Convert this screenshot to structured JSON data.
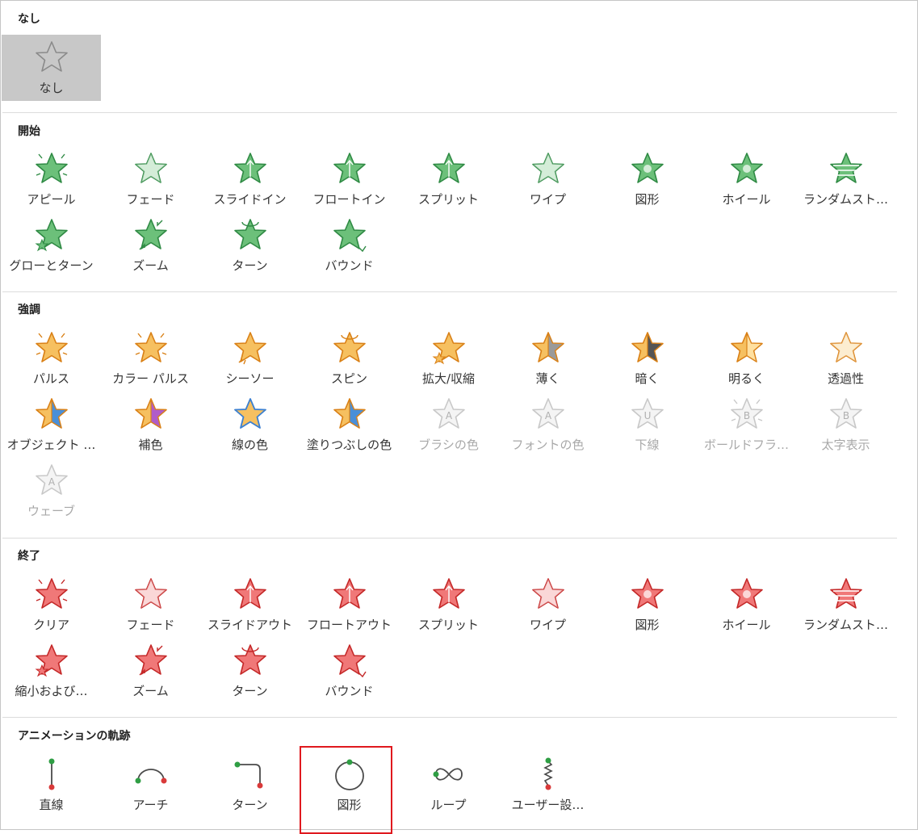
{
  "colors": {
    "none": "#8a8a8a",
    "entrance_fill": "#6cc07a",
    "entrance_stroke": "#2f8a44",
    "emphasis_fill": "#f6c060",
    "emphasis_stroke": "#d98016",
    "exit_fill": "#f07878",
    "exit_stroke": "#c42828",
    "disabled": "#c8c8c8",
    "selection": "#c8c8c8",
    "highlight_border": "#e0191e",
    "path_start": "#2f9e44",
    "path_end": "#d93a3a"
  },
  "sections": [
    {
      "id": "none",
      "title": "なし",
      "items": [
        {
          "label": "なし",
          "icon": "star-outline-icon",
          "variant": "none",
          "selected": true
        }
      ]
    },
    {
      "id": "entrance",
      "title": "開始",
      "items": [
        {
          "label": "アピール",
          "icon": "appear-star-icon",
          "variant": "entrance"
        },
        {
          "label": "フェード",
          "icon": "fade-star-icon",
          "variant": "entrance"
        },
        {
          "label": "スライドイン",
          "icon": "fly-in-star-icon",
          "variant": "entrance"
        },
        {
          "label": "フロートイン",
          "icon": "float-in-star-icon",
          "variant": "entrance"
        },
        {
          "label": "スプリット",
          "icon": "split-star-icon",
          "variant": "entrance"
        },
        {
          "label": "ワイプ",
          "icon": "wipe-star-icon",
          "variant": "entrance"
        },
        {
          "label": "図形",
          "icon": "shape-star-icon",
          "variant": "entrance"
        },
        {
          "label": "ホイール",
          "icon": "wheel-star-icon",
          "variant": "entrance"
        },
        {
          "label": "ランダムスト…",
          "icon": "random-bars-star-icon",
          "variant": "entrance"
        },
        {
          "label": "グローとターン",
          "icon": "grow-turn-star-icon",
          "variant": "entrance"
        },
        {
          "label": "ズーム",
          "icon": "zoom-star-icon",
          "variant": "entrance"
        },
        {
          "label": "ターン",
          "icon": "swivel-star-icon",
          "variant": "entrance"
        },
        {
          "label": "バウンド",
          "icon": "bounce-star-icon",
          "variant": "entrance"
        }
      ]
    },
    {
      "id": "emphasis",
      "title": "強調",
      "items": [
        {
          "label": "パルス",
          "icon": "pulse-star-icon",
          "variant": "emphasis"
        },
        {
          "label": "カラー パルス",
          "icon": "color-pulse-star-icon",
          "variant": "emphasis"
        },
        {
          "label": "シーソー",
          "icon": "teeter-star-icon",
          "variant": "emphasis"
        },
        {
          "label": "スピン",
          "icon": "spin-star-icon",
          "variant": "emphasis"
        },
        {
          "label": "拡大/収縮",
          "icon": "grow-shrink-star-icon",
          "variant": "emphasis"
        },
        {
          "label": "薄く",
          "icon": "desaturate-star-icon",
          "variant": "emphasis"
        },
        {
          "label": "暗く",
          "icon": "darken-star-icon",
          "variant": "emphasis"
        },
        {
          "label": "明るく",
          "icon": "lighten-star-icon",
          "variant": "emphasis"
        },
        {
          "label": "透過性",
          "icon": "transparency-star-icon",
          "variant": "emphasis"
        },
        {
          "label": "オブジェクト …",
          "icon": "object-color-star-icon",
          "variant": "emphasis"
        },
        {
          "label": "補色",
          "icon": "complementary-color-star-icon",
          "variant": "emphasis"
        },
        {
          "label": "線の色",
          "icon": "line-color-star-icon",
          "variant": "emphasis"
        },
        {
          "label": "塗りつぶしの色",
          "icon": "fill-color-star-icon",
          "variant": "emphasis"
        },
        {
          "label": "ブラシの色",
          "icon": "brush-color-star-icon",
          "variant": "disabled",
          "glyph": "A"
        },
        {
          "label": "フォントの色",
          "icon": "font-color-star-icon",
          "variant": "disabled",
          "glyph": "A"
        },
        {
          "label": "下線",
          "icon": "underline-star-icon",
          "variant": "disabled",
          "glyph": "U"
        },
        {
          "label": "ボールドフラ…",
          "icon": "bold-flash-star-icon",
          "variant": "disabled",
          "glyph": "B"
        },
        {
          "label": "太字表示",
          "icon": "bold-reveal-star-icon",
          "variant": "disabled",
          "glyph": "B"
        },
        {
          "label": "ウェーブ",
          "icon": "wave-star-icon",
          "variant": "disabled",
          "glyph": "A"
        }
      ]
    },
    {
      "id": "exit",
      "title": "終了",
      "items": [
        {
          "label": "クリア",
          "icon": "disappear-star-icon",
          "variant": "exit"
        },
        {
          "label": "フェード",
          "icon": "fade-star-icon",
          "variant": "exit"
        },
        {
          "label": "スライドアウト",
          "icon": "fly-out-star-icon",
          "variant": "exit"
        },
        {
          "label": "フロートアウト",
          "icon": "float-out-star-icon",
          "variant": "exit"
        },
        {
          "label": "スプリット",
          "icon": "split-star-icon",
          "variant": "exit"
        },
        {
          "label": "ワイプ",
          "icon": "wipe-star-icon",
          "variant": "exit"
        },
        {
          "label": "図形",
          "icon": "shape-star-icon",
          "variant": "exit"
        },
        {
          "label": "ホイール",
          "icon": "wheel-star-icon",
          "variant": "exit"
        },
        {
          "label": "ランダムスト…",
          "icon": "random-bars-star-icon",
          "variant": "exit"
        },
        {
          "label": "縮小および…",
          "icon": "shrink-turn-star-icon",
          "variant": "exit"
        },
        {
          "label": "ズーム",
          "icon": "zoom-star-icon",
          "variant": "exit"
        },
        {
          "label": "ターン",
          "icon": "swivel-star-icon",
          "variant": "exit"
        },
        {
          "label": "バウンド",
          "icon": "bounce-star-icon",
          "variant": "exit"
        }
      ]
    },
    {
      "id": "motion",
      "title": "アニメーションの軌跡",
      "items": [
        {
          "label": "直線",
          "icon": "line-path-icon",
          "variant": "path"
        },
        {
          "label": "アーチ",
          "icon": "arc-path-icon",
          "variant": "path"
        },
        {
          "label": "ターン",
          "icon": "turn-path-icon",
          "variant": "path"
        },
        {
          "label": "図形",
          "icon": "circle-path-icon",
          "variant": "path",
          "highlighted": true
        },
        {
          "label": "ループ",
          "icon": "loop-path-icon",
          "variant": "path"
        },
        {
          "label": "ユーザー設…",
          "icon": "custom-path-icon",
          "variant": "path"
        }
      ]
    }
  ]
}
